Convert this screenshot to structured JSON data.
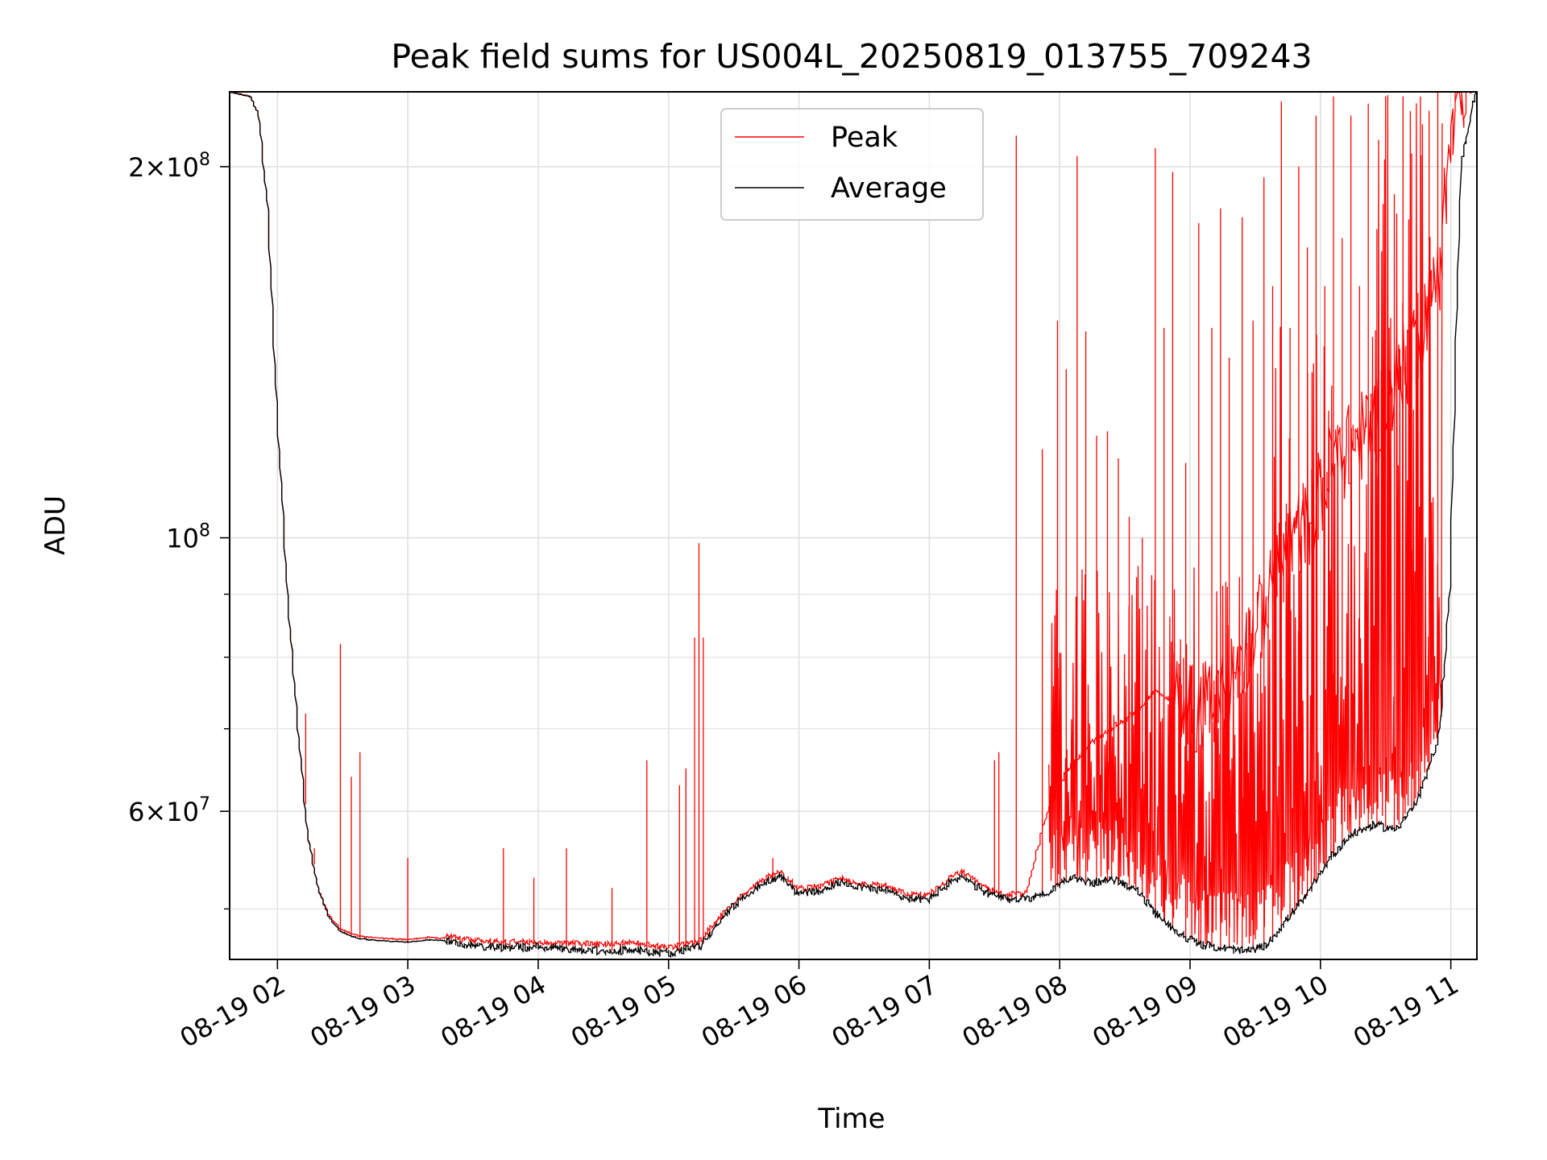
{
  "chart_data": {
    "type": "line",
    "title": "Peak field sums for US004L_20250819_013755_709243",
    "xlabel": "Time",
    "ylabel": "ADU",
    "x_scale": "time",
    "y_scale": "log",
    "xlim": [
      "2025-08-19T01:38",
      "2025-08-19T11:12"
    ],
    "ylim": [
      45500000,
      230000000
    ],
    "x_ticks": [
      {
        "value": "2025-08-19T02:00",
        "label": "08-19 02"
      },
      {
        "value": "2025-08-19T03:00",
        "label": "08-19 03"
      },
      {
        "value": "2025-08-19T04:00",
        "label": "08-19 04"
      },
      {
        "value": "2025-08-19T05:00",
        "label": "08-19 05"
      },
      {
        "value": "2025-08-19T06:00",
        "label": "08-19 06"
      },
      {
        "value": "2025-08-19T07:00",
        "label": "08-19 07"
      },
      {
        "value": "2025-08-19T08:00",
        "label": "08-19 08"
      },
      {
        "value": "2025-08-19T09:00",
        "label": "08-19 09"
      },
      {
        "value": "2025-08-19T10:00",
        "label": "08-19 10"
      },
      {
        "value": "2025-08-19T11:00",
        "label": "08-19 11"
      }
    ],
    "y_major_ticks": [
      {
        "value": 60000000,
        "mantissa": "6",
        "exponent": "7"
      },
      {
        "value": 100000000,
        "mantissa": "",
        "exponent": "8"
      },
      {
        "value": 200000000,
        "mantissa": "2",
        "exponent": "8"
      }
    ],
    "y_minor_ticks": [
      50000000,
      70000000,
      80000000,
      90000000
    ],
    "grid": true,
    "legend": {
      "position": "upper center"
    },
    "series": [
      {
        "name": "Peak",
        "color": "#ff0000",
        "x": [
          "2025-08-19T01:38",
          "2025-08-19T01:48",
          "2025-08-19T01:52",
          "2025-08-19T01:56",
          "2025-08-19T02:00",
          "2025-08-19T02:05",
          "2025-08-19T02:10",
          "2025-08-19T02:14",
          "2025-08-19T02:19",
          "2025-08-19T02:24",
          "2025-08-19T02:29",
          "2025-08-19T02:34",
          "2025-08-19T02:38",
          "2025-08-19T02:50",
          "2025-08-19T03:00",
          "2025-08-19T03:10",
          "2025-08-19T03:20",
          "2025-08-19T03:30",
          "2025-08-19T03:45",
          "2025-08-19T04:00",
          "2025-08-19T04:15",
          "2025-08-19T04:30",
          "2025-08-19T04:45",
          "2025-08-19T05:00",
          "2025-08-19T05:15",
          "2025-08-19T05:30",
          "2025-08-19T05:45",
          "2025-08-19T05:52",
          "2025-08-19T06:00",
          "2025-08-19T06:10",
          "2025-08-19T06:20",
          "2025-08-19T06:30",
          "2025-08-19T06:40",
          "2025-08-19T06:50",
          "2025-08-19T07:00",
          "2025-08-19T07:10",
          "2025-08-19T07:15",
          "2025-08-19T07:25",
          "2025-08-19T07:35",
          "2025-08-19T07:45",
          "2025-08-19T07:55",
          "2025-08-19T08:05",
          "2025-08-19T08:15",
          "2025-08-19T08:25",
          "2025-08-19T08:35",
          "2025-08-19T08:45",
          "2025-08-19T08:55",
          "2025-08-19T09:05",
          "2025-08-19T09:15",
          "2025-08-19T09:25",
          "2025-08-19T09:35",
          "2025-08-19T09:45",
          "2025-08-19T09:55",
          "2025-08-19T10:05",
          "2025-08-19T10:15",
          "2025-08-19T10:25",
          "2025-08-19T10:35",
          "2025-08-19T10:45",
          "2025-08-19T10:55",
          "2025-08-19T11:00",
          "2025-08-19T11:05",
          "2025-08-19T11:12"
        ],
        "y": [
          230000000,
          228000000,
          220000000,
          185000000,
          130000000,
          90000000,
          70000000,
          58000000,
          52000000,
          49500000,
          48200000,
          47800000,
          47500000,
          47300000,
          47200000,
          47400000,
          47300000,
          47000000,
          46900000,
          46900000,
          46800000,
          46700000,
          46800000,
          46400000,
          47000000,
          50500000,
          52800000,
          53500000,
          51800000,
          52000000,
          52800000,
          52300000,
          52100000,
          51300000,
          51200000,
          52800000,
          53500000,
          52000000,
          51200000,
          51300000,
          60000000,
          65000000,
          68000000,
          70000000,
          72000000,
          75000000,
          73000000,
          70000000,
          72000000,
          78000000,
          85000000,
          95000000,
          100000000,
          110000000,
          115000000,
          120000000,
          130000000,
          140000000,
          160000000,
          200000000,
          225000000,
          230000000
        ]
      },
      {
        "name": "Average",
        "color": "#000000",
        "x": [
          "2025-08-19T01:38",
          "2025-08-19T01:48",
          "2025-08-19T01:52",
          "2025-08-19T01:56",
          "2025-08-19T02:00",
          "2025-08-19T02:05",
          "2025-08-19T02:10",
          "2025-08-19T02:14",
          "2025-08-19T02:19",
          "2025-08-19T02:24",
          "2025-08-19T02:29",
          "2025-08-19T02:34",
          "2025-08-19T02:38",
          "2025-08-19T02:50",
          "2025-08-19T03:00",
          "2025-08-19T03:10",
          "2025-08-19T03:20",
          "2025-08-19T03:30",
          "2025-08-19T03:45",
          "2025-08-19T04:00",
          "2025-08-19T04:15",
          "2025-08-19T04:30",
          "2025-08-19T04:45",
          "2025-08-19T05:00",
          "2025-08-19T05:15",
          "2025-08-19T05:30",
          "2025-08-19T05:45",
          "2025-08-19T05:52",
          "2025-08-19T06:00",
          "2025-08-19T06:10",
          "2025-08-19T06:20",
          "2025-08-19T06:30",
          "2025-08-19T06:40",
          "2025-08-19T06:50",
          "2025-08-19T07:00",
          "2025-08-19T07:10",
          "2025-08-19T07:15",
          "2025-08-19T07:25",
          "2025-08-19T07:35",
          "2025-08-19T07:45",
          "2025-08-19T07:55",
          "2025-08-19T08:05",
          "2025-08-19T08:15",
          "2025-08-19T08:25",
          "2025-08-19T08:35",
          "2025-08-19T08:45",
          "2025-08-19T08:55",
          "2025-08-19T09:05",
          "2025-08-19T09:15",
          "2025-08-19T09:25",
          "2025-08-19T09:35",
          "2025-08-19T09:45",
          "2025-08-19T09:55",
          "2025-08-19T10:05",
          "2025-08-19T10:15",
          "2025-08-19T10:25",
          "2025-08-19T10:35",
          "2025-08-19T10:45",
          "2025-08-19T10:55",
          "2025-08-19T11:00",
          "2025-08-19T11:05",
          "2025-08-19T11:12"
        ],
        "y": [
          230000000,
          228000000,
          220000000,
          185000000,
          130000000,
          90000000,
          70000000,
          58000000,
          52000000,
          49300000,
          48000000,
          47600000,
          47300000,
          47100000,
          47000000,
          47200000,
          47100000,
          46700000,
          46500000,
          46600000,
          46400000,
          46200000,
          46300000,
          46000000,
          46600000,
          50200000,
          52600000,
          53200000,
          51500000,
          51700000,
          52600000,
          52000000,
          51800000,
          51000000,
          50900000,
          52500000,
          53200000,
          51700000,
          50900000,
          51000000,
          51500000,
          53000000,
          52500000,
          52800000,
          52000000,
          49500000,
          47800000,
          46800000,
          46500000,
          46200000,
          46600000,
          49000000,
          51500000,
          55000000,
          57500000,
          58500000,
          58000000,
          61000000,
          69000000,
          90000000,
          200000000,
          230000000
        ]
      }
    ],
    "peak_spikes": {
      "x": [
        "2025-08-19T02:13",
        "2025-08-19T02:17",
        "2025-08-19T02:29",
        "2025-08-19T02:34",
        "2025-08-19T02:38",
        "2025-08-19T03:00",
        "2025-08-19T03:44",
        "2025-08-19T03:58",
        "2025-08-19T04:13",
        "2025-08-19T04:34",
        "2025-08-19T04:50",
        "2025-08-19T05:05",
        "2025-08-19T05:08",
        "2025-08-19T05:12",
        "2025-08-19T05:14",
        "2025-08-19T05:16",
        "2025-08-19T05:48",
        "2025-08-19T07:30",
        "2025-08-19T07:32",
        "2025-08-19T07:40",
        "2025-08-19T07:52",
        "2025-08-19T07:59",
        "2025-08-19T08:03",
        "2025-08-19T08:08",
        "2025-08-19T08:12",
        "2025-08-19T08:17",
        "2025-08-19T08:22",
        "2025-08-19T08:27",
        "2025-08-19T08:32",
        "2025-08-19T08:38",
        "2025-08-19T08:44",
        "2025-08-19T08:48",
        "2025-08-19T08:52",
        "2025-08-19T08:58",
        "2025-08-19T09:04",
        "2025-08-19T09:10",
        "2025-08-19T09:14",
        "2025-08-19T09:18",
        "2025-08-19T09:24",
        "2025-08-19T09:29",
        "2025-08-19T09:34",
        "2025-08-19T09:38",
        "2025-08-19T09:42",
        "2025-08-19T09:46",
        "2025-08-19T09:50",
        "2025-08-19T09:54",
        "2025-08-19T09:58",
        "2025-08-19T10:02",
        "2025-08-19T10:06",
        "2025-08-19T10:10",
        "2025-08-19T10:14",
        "2025-08-19T10:18",
        "2025-08-19T10:22",
        "2025-08-19T10:26",
        "2025-08-19T10:30",
        "2025-08-19T10:34",
        "2025-08-19T10:38",
        "2025-08-19T10:42",
        "2025-08-19T10:46",
        "2025-08-19T10:50",
        "2025-08-19T10:54"
      ],
      "y": [
        72000000,
        56000000,
        82000000,
        64000000,
        67000000,
        55000000,
        56000000,
        53000000,
        56000000,
        52000000,
        66000000,
        63000000,
        65000000,
        83000000,
        99000000,
        83000000,
        55000000,
        66000000,
        67000000,
        212000000,
        118000000,
        150000000,
        137000000,
        204000000,
        147000000,
        121000000,
        122000000,
        116000000,
        104000000,
        100000000,
        207000000,
        148000000,
        198000000,
        115000000,
        180000000,
        148000000,
        185000000,
        140000000,
        182000000,
        150000000,
        196000000,
        160000000,
        226000000,
        148000000,
        200000000,
        172000000,
        220000000,
        160000000,
        228000000,
        175000000,
        220000000,
        160000000,
        225000000,
        178000000,
        228000000,
        190000000,
        228000000,
        205000000,
        228000000,
        222000000,
        230000000
      ]
    }
  },
  "legend_labels": {
    "peak": "Peak",
    "average": "Average"
  }
}
